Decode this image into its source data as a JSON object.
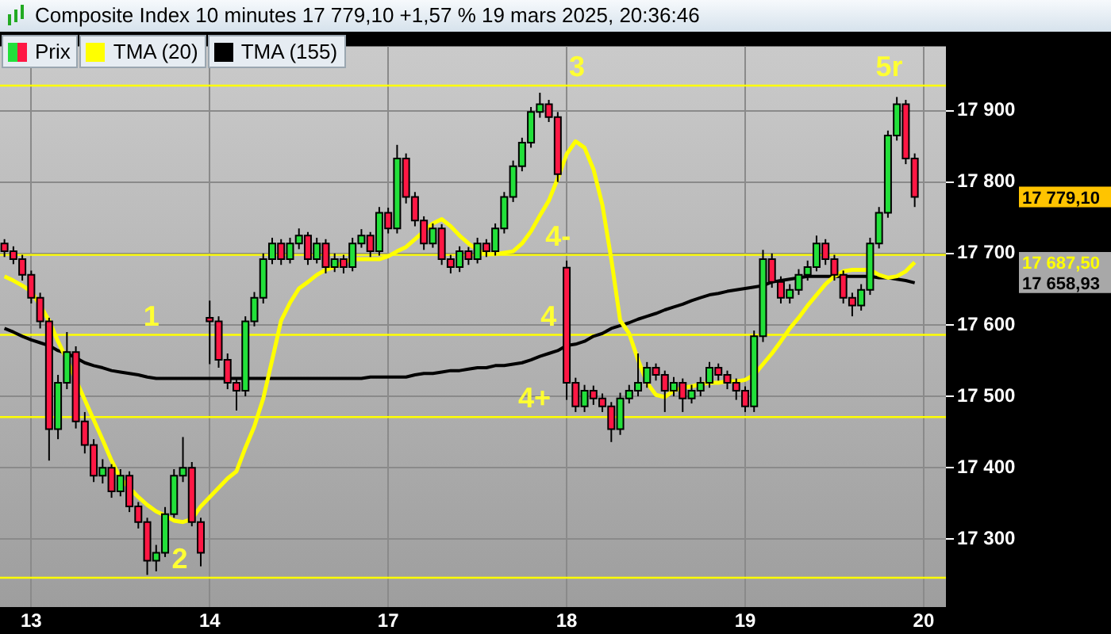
{
  "chart_data": {
    "type": "candlestick",
    "title": "Composite Index 10 minutes 17 779,10 +1,57 % 19 mars 2025, 20:36:46",
    "categories": [
      null,
      null,
      null,
      "13",
      null,
      null,
      null,
      null,
      null,
      null,
      null,
      null,
      null,
      null,
      null,
      null,
      null,
      null,
      null,
      null,
      null,
      null,
      null,
      "14",
      null,
      null,
      null,
      null,
      null,
      null,
      null,
      null,
      null,
      null,
      null,
      null,
      null,
      null,
      null,
      null,
      null,
      null,
      null,
      "17",
      null,
      null,
      null,
      null,
      null,
      null,
      null,
      null,
      null,
      null,
      null,
      null,
      null,
      null,
      null,
      null,
      null,
      null,
      null,
      "18",
      null,
      null,
      null,
      null,
      null,
      null,
      null,
      null,
      null,
      null,
      null,
      null,
      null,
      null,
      null,
      null,
      null,
      null,
      null,
      "19",
      null,
      null,
      null,
      null,
      null,
      null,
      null,
      null,
      null,
      null,
      null,
      null,
      null,
      null,
      null,
      null,
      null,
      null,
      null,
      "20",
      null,
      null
    ],
    "series": [
      {
        "name": "Prix",
        "ohlc": [
          [
            17714,
            17720,
            17695,
            17703
          ],
          [
            17703,
            17710,
            17685,
            17692
          ],
          [
            17692,
            17698,
            17662,
            17670
          ],
          [
            17670,
            17676,
            17630,
            17638
          ],
          [
            17638,
            17645,
            17595,
            17605
          ],
          [
            17605,
            17610,
            17410,
            17454
          ],
          [
            17454,
            17530,
            17440,
            17519
          ],
          [
            17519,
            17590,
            17510,
            17562
          ],
          [
            17562,
            17570,
            17455,
            17465
          ],
          [
            17465,
            17478,
            17420,
            17432
          ],
          [
            17432,
            17440,
            17380,
            17389
          ],
          [
            17389,
            17412,
            17378,
            17400
          ],
          [
            17400,
            17405,
            17358,
            17367
          ],
          [
            17367,
            17398,
            17360,
            17389
          ],
          [
            17389,
            17395,
            17338,
            17346
          ],
          [
            17346,
            17352,
            17315,
            17324
          ],
          [
            17324,
            17330,
            17250,
            17270
          ],
          [
            17270,
            17292,
            17255,
            17281
          ],
          [
            17281,
            17345,
            17275,
            17335
          ],
          [
            17335,
            17398,
            17330,
            17389
          ],
          [
            17389,
            17443,
            17380,
            17400
          ],
          [
            17400,
            17408,
            17318,
            17324
          ],
          [
            17324,
            17330,
            17262,
            17281
          ],
          [
            17610,
            17634,
            17545,
            17605
          ],
          [
            17605,
            17612,
            17540,
            17551
          ],
          [
            17551,
            17560,
            17510,
            17519
          ],
          [
            17519,
            17525,
            17480,
            17508
          ],
          [
            17508,
            17612,
            17500,
            17605
          ],
          [
            17605,
            17646,
            17598,
            17638
          ],
          [
            17638,
            17700,
            17630,
            17692
          ],
          [
            17692,
            17722,
            17685,
            17714
          ],
          [
            17714,
            17720,
            17684,
            17692
          ],
          [
            17692,
            17722,
            17686,
            17714
          ],
          [
            17714,
            17735,
            17706,
            17725
          ],
          [
            17725,
            17730,
            17684,
            17692
          ],
          [
            17692,
            17722,
            17686,
            17714
          ],
          [
            17714,
            17720,
            17672,
            17681
          ],
          [
            17681,
            17700,
            17674,
            17692
          ],
          [
            17692,
            17698,
            17672,
            17681
          ],
          [
            17681,
            17722,
            17675,
            17714
          ],
          [
            17714,
            17734,
            17708,
            17725
          ],
          [
            17725,
            17730,
            17695,
            17703
          ],
          [
            17703,
            17765,
            17697,
            17757
          ],
          [
            17757,
            17764,
            17728,
            17735
          ],
          [
            17735,
            17852,
            17728,
            17833
          ],
          [
            17833,
            17840,
            17770,
            17779
          ],
          [
            17779,
            17786,
            17738,
            17746
          ],
          [
            17746,
            17752,
            17705,
            17714
          ],
          [
            17714,
            17742,
            17708,
            17735
          ],
          [
            17735,
            17741,
            17684,
            17692
          ],
          [
            17692,
            17698,
            17672,
            17681
          ],
          [
            17681,
            17710,
            17674,
            17703
          ],
          [
            17703,
            17709,
            17684,
            17692
          ],
          [
            17692,
            17722,
            17686,
            17714
          ],
          [
            17714,
            17720,
            17695,
            17703
          ],
          [
            17703,
            17742,
            17697,
            17735
          ],
          [
            17735,
            17786,
            17728,
            17779
          ],
          [
            17779,
            17830,
            17772,
            17822
          ],
          [
            17822,
            17862,
            17815,
            17855
          ],
          [
            17855,
            17905,
            17848,
            17898
          ],
          [
            17898,
            17925,
            17890,
            17909
          ],
          [
            17909,
            17915,
            17884,
            17891
          ],
          [
            17891,
            17898,
            17800,
            17811
          ],
          [
            17680,
            17690,
            17495,
            17519
          ],
          [
            17519,
            17526,
            17478,
            17486
          ],
          [
            17486,
            17516,
            17478,
            17508
          ],
          [
            17508,
            17515,
            17488,
            17497
          ],
          [
            17497,
            17504,
            17478,
            17486
          ],
          [
            17486,
            17492,
            17436,
            17454
          ],
          [
            17454,
            17505,
            17446,
            17497
          ],
          [
            17497,
            17516,
            17490,
            17508
          ],
          [
            17508,
            17560,
            17500,
            17519
          ],
          [
            17519,
            17548,
            17512,
            17540
          ],
          [
            17540,
            17546,
            17522,
            17530
          ],
          [
            17530,
            17536,
            17478,
            17508
          ],
          [
            17508,
            17527,
            17500,
            17519
          ],
          [
            17519,
            17525,
            17478,
            17497
          ],
          [
            17497,
            17516,
            17490,
            17508
          ],
          [
            17508,
            17527,
            17500,
            17519
          ],
          [
            17519,
            17548,
            17512,
            17540
          ],
          [
            17540,
            17546,
            17522,
            17530
          ],
          [
            17530,
            17536,
            17510,
            17519
          ],
          [
            17519,
            17525,
            17495,
            17508
          ],
          [
            17508,
            17514,
            17478,
            17486
          ],
          [
            17486,
            17592,
            17478,
            17584
          ],
          [
            17584,
            17705,
            17576,
            17692
          ],
          [
            17692,
            17700,
            17652,
            17660
          ],
          [
            17660,
            17668,
            17630,
            17638
          ],
          [
            17638,
            17657,
            17630,
            17649
          ],
          [
            17649,
            17678,
            17642,
            17670
          ],
          [
            17670,
            17690,
            17662,
            17681
          ],
          [
            17681,
            17725,
            17675,
            17714
          ],
          [
            17714,
            17720,
            17684,
            17692
          ],
          [
            17692,
            17698,
            17662,
            17670
          ],
          [
            17670,
            17676,
            17630,
            17638
          ],
          [
            17638,
            17645,
            17612,
            17627
          ],
          [
            17627,
            17657,
            17620,
            17649
          ],
          [
            17649,
            17722,
            17642,
            17714
          ],
          [
            17714,
            17765,
            17707,
            17757
          ],
          [
            17757,
            17872,
            17750,
            17865
          ],
          [
            17865,
            17919,
            17858,
            17909
          ],
          [
            17909,
            17915,
            17825,
            17833
          ],
          [
            17833,
            17840,
            17765,
            17779.1
          ],
          null,
          null,
          null
        ]
      },
      {
        "name": "TMA (20)",
        "type": "line",
        "color": "#ffff00",
        "values": [
          17668,
          17662,
          17655,
          17647,
          17627,
          17606,
          17577,
          17551,
          17523,
          17495,
          17467,
          17439,
          17410,
          17385,
          17372,
          17359,
          17348,
          17339,
          17333,
          17326,
          17324,
          17328,
          17346,
          17359,
          17372,
          17385,
          17395,
          17428,
          17458,
          17497,
          17551,
          17606,
          17631,
          17651,
          17660,
          17670,
          17677,
          17681,
          17688,
          17692,
          17692,
          17692,
          17692,
          17696,
          17703,
          17709,
          17720,
          17731,
          17742,
          17748,
          17738,
          17725,
          17714,
          17705,
          17699,
          17699,
          17701,
          17703,
          17714,
          17731,
          17753,
          17774,
          17805,
          17839,
          17857,
          17848,
          17818,
          17768,
          17692,
          17606,
          17588,
          17551,
          17519,
          17502,
          17499,
          17508,
          17512,
          17514,
          17517,
          17519,
          17519,
          17521,
          17521,
          17523,
          17530,
          17545,
          17560,
          17577,
          17595,
          17610,
          17627,
          17642,
          17657,
          17668,
          17675,
          17677,
          17677,
          17677,
          17670,
          17666,
          17668,
          17675,
          17687.5,
          null,
          null,
          null
        ]
      },
      {
        "name": "TMA (155)",
        "type": "line",
        "color": "#000000",
        "values": [
          17595,
          17590,
          17584,
          17579,
          17575,
          17571,
          17564,
          17560,
          17554,
          17547,
          17543,
          17540,
          17536,
          17534,
          17532,
          17530,
          17527,
          17525,
          17525,
          17525,
          17525,
          17525,
          17525,
          17525,
          17525,
          17525,
          17525,
          17525,
          17525,
          17525,
          17525,
          17525,
          17525,
          17525,
          17525,
          17525,
          17525,
          17525,
          17525,
          17525,
          17525,
          17527,
          17527,
          17527,
          17527,
          17527,
          17530,
          17532,
          17532,
          17534,
          17536,
          17536,
          17538,
          17540,
          17540,
          17543,
          17543,
          17545,
          17547,
          17551,
          17556,
          17560,
          17564,
          17571,
          17573,
          17577,
          17584,
          17588,
          17595,
          17599,
          17603,
          17608,
          17612,
          17616,
          17621,
          17625,
          17629,
          17634,
          17638,
          17642,
          17644,
          17647,
          17649,
          17651,
          17653,
          17655,
          17660,
          17662,
          17664,
          17666,
          17668,
          17668,
          17668,
          17668,
          17668,
          17668,
          17668,
          17668,
          17666,
          17666,
          17664,
          17662,
          17658.93,
          null,
          null,
          null
        ]
      }
    ],
    "ylim": [
      17205,
      17990
    ],
    "yticks": [
      {
        "value": 17300,
        "label": "17 300"
      },
      {
        "value": 17400,
        "label": "17 400"
      },
      {
        "value": 17500,
        "label": "17 500"
      },
      {
        "value": 17600,
        "label": "17 600"
      },
      {
        "value": 17700,
        "label": "17 700"
      },
      {
        "value": 17800,
        "label": "17 800"
      },
      {
        "value": 17900,
        "label": "17 900"
      }
    ],
    "grid": true,
    "legend": "top left",
    "ref_lines": [
      {
        "axis": "y",
        "value": 17935,
        "color": "#ffff00"
      },
      {
        "axis": "y",
        "value": 17698,
        "color": "#ffff00"
      },
      {
        "axis": "y",
        "value": 17586,
        "color": "#ffff00"
      },
      {
        "axis": "y",
        "value": 17471,
        "color": "#ffff00"
      },
      {
        "axis": "y",
        "value": 17246,
        "color": "#ffff00"
      }
    ],
    "annotations": [
      {
        "text": "1",
        "y": 17586
      },
      {
        "text": "2",
        "y": 17246
      },
      {
        "text": "3",
        "y": 17935
      },
      {
        "text": "4-",
        "y": 17698
      },
      {
        "text": "4",
        "y": 17586
      },
      {
        "text": "4+",
        "y": 17471
      },
      {
        "text": "5r",
        "y": 17935
      },
      "17 779,10",
      "17 687,50",
      "17 658,93"
    ]
  }
}
